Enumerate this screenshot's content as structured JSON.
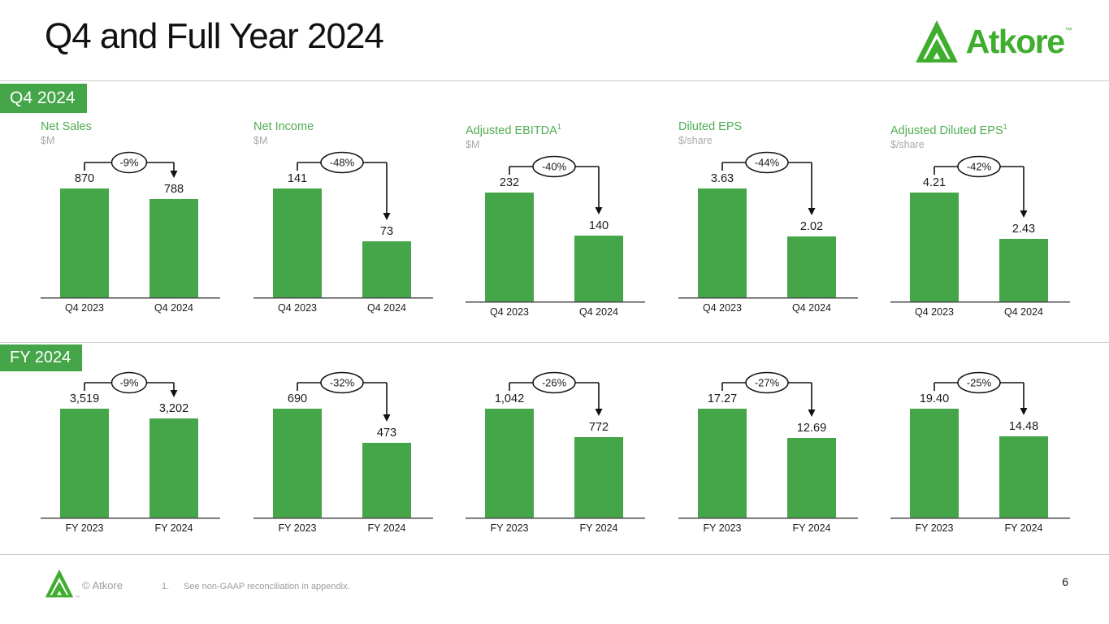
{
  "slide": {
    "title": "Q4 and Full Year 2024",
    "page_number": "6",
    "brand": {
      "name": "Atkore",
      "trademark": "™",
      "logo_icon": "atkore-triangle-icon"
    },
    "footer": {
      "copyright": "© Atkore",
      "note_number": "1.",
      "note_text": "See non-GAAP reconciliation in appendix.",
      "trademark": "™"
    }
  },
  "sections": [
    {
      "id": "q4",
      "banner": "Q4 2024"
    },
    {
      "id": "fy",
      "banner": "FY 2024"
    }
  ],
  "colors": {
    "green": "#45A549",
    "title_green": "#4FAD52",
    "logo_green": "#3FAD2E",
    "unit_gray": "#a9a9a9",
    "axis": "#4a4a4a",
    "line_black": "#111111",
    "label_black": "#1a1a1a",
    "divider_gray": "#cccccc",
    "footer_gray": "#9b9b9b"
  },
  "chart_data": [
    {
      "type": "bar",
      "section": "Q4 2024",
      "metric": "Net Sales",
      "title": "Net Sales",
      "superscript": "",
      "unit": "$M",
      "change": "-9%",
      "categories": [
        "Q4 2023",
        "Q4 2024"
      ],
      "values": [
        870,
        788
      ],
      "value_labels": [
        "870",
        "788"
      ]
    },
    {
      "type": "bar",
      "section": "Q4 2024",
      "metric": "Net Income",
      "title": "Net Income",
      "superscript": "",
      "unit": "$M",
      "change": "-48%",
      "categories": [
        "Q4 2023",
        "Q4 2024"
      ],
      "values": [
        141,
        73
      ],
      "value_labels": [
        "141",
        "73"
      ]
    },
    {
      "type": "bar",
      "section": "Q4 2024",
      "metric": "Adjusted EBITDA",
      "title": "Adjusted EBITDA",
      "superscript": "1",
      "unit": "$M",
      "change": "-40%",
      "categories": [
        "Q4 2023",
        "Q4 2024"
      ],
      "values": [
        232,
        140
      ],
      "value_labels": [
        "232",
        "140"
      ]
    },
    {
      "type": "bar",
      "section": "Q4 2024",
      "metric": "Diluted EPS",
      "title": "Diluted EPS",
      "superscript": "",
      "unit": "$/share",
      "change": "-44%",
      "categories": [
        "Q4 2023",
        "Q4 2024"
      ],
      "values": [
        3.63,
        2.02
      ],
      "value_labels": [
        "3.63",
        "2.02"
      ]
    },
    {
      "type": "bar",
      "section": "Q4 2024",
      "metric": "Adjusted Diluted EPS",
      "title": "Adjusted Diluted EPS",
      "superscript": "1",
      "unit": "$/share",
      "change": "-42%",
      "categories": [
        "Q4 2023",
        "Q4 2024"
      ],
      "values": [
        4.21,
        2.43
      ],
      "value_labels": [
        "4.21",
        "2.43"
      ]
    },
    {
      "type": "bar",
      "section": "FY 2024",
      "metric": "Net Sales",
      "title": "",
      "superscript": "",
      "unit": "",
      "change": "-9%",
      "categories": [
        "FY 2023",
        "FY 2024"
      ],
      "values": [
        3519,
        3202
      ],
      "value_labels": [
        "3,519",
        "3,202"
      ]
    },
    {
      "type": "bar",
      "section": "FY 2024",
      "metric": "Net Income",
      "title": "",
      "superscript": "",
      "unit": "",
      "change": "-32%",
      "categories": [
        "FY 2023",
        "FY 2024"
      ],
      "values": [
        690,
        473
      ],
      "value_labels": [
        "690",
        "473"
      ]
    },
    {
      "type": "bar",
      "section": "FY 2024",
      "metric": "Adjusted EBITDA",
      "title": "",
      "superscript": "",
      "unit": "",
      "change": "-26%",
      "categories": [
        "FY 2023",
        "FY 2024"
      ],
      "values": [
        1042,
        772
      ],
      "value_labels": [
        "1,042",
        "772"
      ]
    },
    {
      "type": "bar",
      "section": "FY 2024",
      "metric": "Diluted EPS",
      "title": "",
      "superscript": "",
      "unit": "",
      "change": "-27%",
      "categories": [
        "FY 2023",
        "FY 2024"
      ],
      "values": [
        17.27,
        12.69
      ],
      "value_labels": [
        "17.27",
        "12.69"
      ]
    },
    {
      "type": "bar",
      "section": "FY 2024",
      "metric": "Adjusted Diluted EPS",
      "title": "",
      "superscript": "",
      "unit": "",
      "change": "-25%",
      "categories": [
        "FY 2023",
        "FY 2024"
      ],
      "values": [
        19.4,
        14.48
      ],
      "value_labels": [
        "19.40",
        "14.48"
      ]
    }
  ]
}
